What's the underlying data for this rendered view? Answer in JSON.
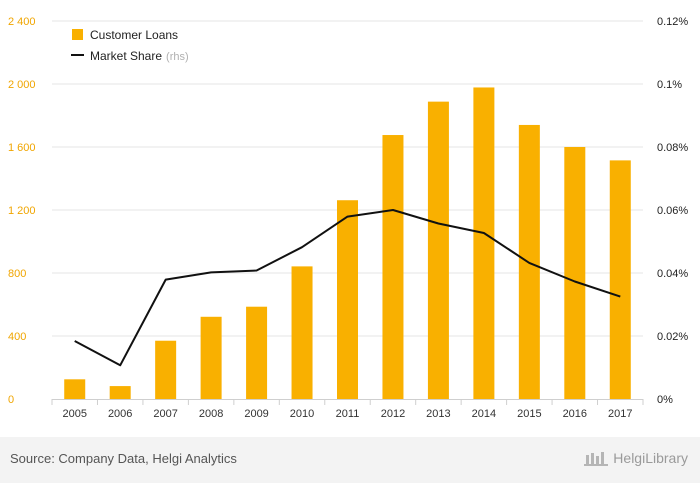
{
  "chart_data": {
    "type": "bar",
    "categories": [
      "2005",
      "2006",
      "2007",
      "2008",
      "2009",
      "2010",
      "2011",
      "2012",
      "2013",
      "2014",
      "2015",
      "2016",
      "2017"
    ],
    "series": [
      {
        "name": "Customer Loans",
        "type": "bar",
        "axis": "left",
        "color": "#f9b000",
        "values": [
          125,
          82,
          370,
          522,
          586,
          842,
          1262,
          1676,
          1888,
          1978,
          1740,
          1600,
          1515
        ]
      },
      {
        "name": "Market Share",
        "name_note": "(rhs)",
        "type": "line",
        "axis": "right",
        "color": "#111111",
        "values": [
          0.0184,
          0.0107,
          0.0379,
          0.0402,
          0.0408,
          0.0482,
          0.0579,
          0.06,
          0.0557,
          0.0527,
          0.0432,
          0.0373,
          0.0325
        ]
      }
    ],
    "y_left": {
      "min": 0,
      "max": 2400,
      "ticks": [
        0,
        400,
        800,
        1200,
        1600,
        2000,
        2400
      ],
      "tick_labels": [
        "0",
        "400",
        "800",
        "1 200",
        "1 600",
        "2 000",
        "2 400"
      ]
    },
    "y_right": {
      "min": 0,
      "max": 0.12,
      "ticks": [
        0,
        0.02,
        0.04,
        0.06,
        0.08,
        0.1,
        0.12
      ],
      "tick_labels": [
        "0%",
        "0.02%",
        "0.04%",
        "0.06%",
        "0.08%",
        "0.1%",
        "0.12%"
      ]
    },
    "grid": true,
    "legend": "top-left"
  },
  "footer": {
    "source": "Source: Company Data, Helgi Analytics",
    "brand": "HelgiLibrary"
  }
}
